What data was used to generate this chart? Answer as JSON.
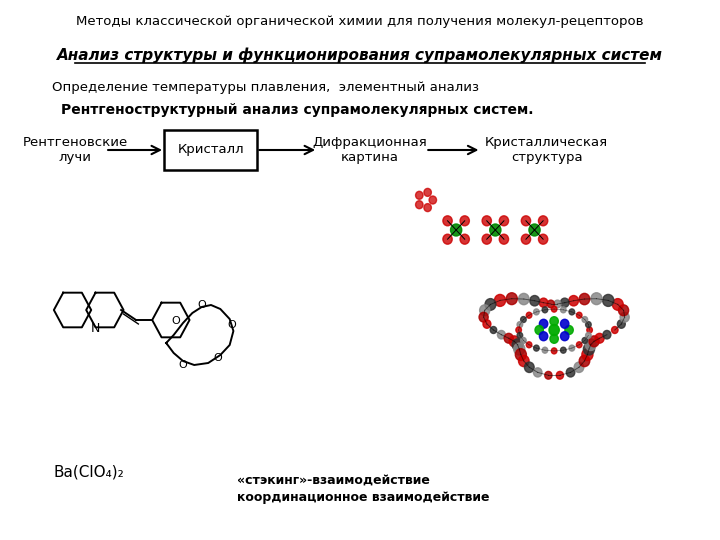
{
  "bg_color": "#ffffff",
  "title_line1": "Методы классической органической химии для получения молекул-рецепторов",
  "title_line2": "Анализ структуры и функционирования супрамолекулярных систем",
  "subtitle1": "Определение температуры плавления,  элементный анализ",
  "subtitle2": "Рентгеноструктурный анализ супрамолекулярных систем.",
  "flow_items": [
    "Рентгеновские\nлучи",
    "Кристалл",
    "Дифракционная\nкартина",
    "Кристаллическая\nструктура"
  ],
  "formula": "Ba(ClO₄)₂",
  "stacking_text1": "«стэкинг»-взаимодействие",
  "stacking_text2": "координационное взаимодействие",
  "arrow_color": "#000000",
  "box_color": "#000000",
  "text_color": "#000000"
}
